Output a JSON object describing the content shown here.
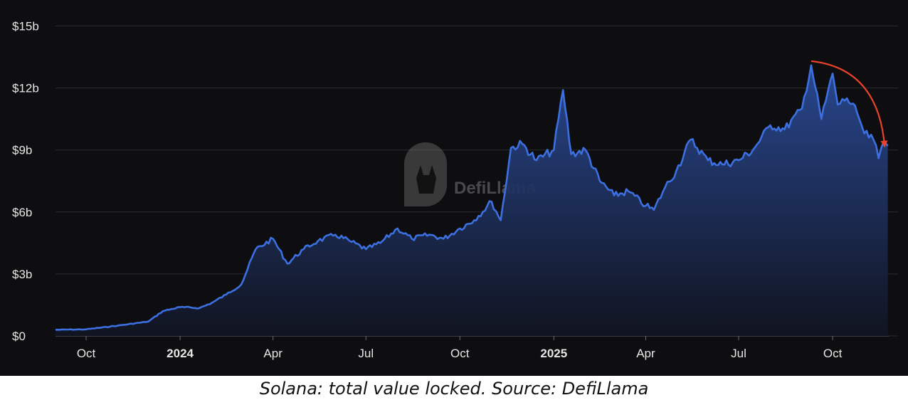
{
  "caption": "Solana: total value locked. Source: DefiLlama",
  "watermark": {
    "text": "DefiLlama",
    "icon": "llama-logo-icon"
  },
  "colors": {
    "background": "#0e0e10",
    "line": "#3c6fe0",
    "fill_top": "#2a4a96",
    "fill_bottom": "#111522",
    "arrow": "#e8412c",
    "text": "#e6e6e6"
  },
  "chart_data": {
    "type": "area",
    "title": "",
    "xlabel": "",
    "ylabel": "",
    "y_unit": "billion USD",
    "ylim": [
      0,
      15.5
    ],
    "yticks": [
      {
        "value": 0,
        "label": "$0"
      },
      {
        "value": 3,
        "label": "$3b"
      },
      {
        "value": 6,
        "label": "$6b"
      },
      {
        "value": 9,
        "label": "$9b"
      },
      {
        "value": 12,
        "label": "$12b"
      },
      {
        "value": 15,
        "label": "$15b"
      }
    ],
    "xlim": [
      "2023-09-01",
      "2025-11-25"
    ],
    "xticks": [
      {
        "date": "2023-10-01",
        "label": "Oct",
        "bold": false
      },
      {
        "date": "2024-01-01",
        "label": "2024",
        "bold": true
      },
      {
        "date": "2024-04-01",
        "label": "Apr",
        "bold": false
      },
      {
        "date": "2024-07-01",
        "label": "Jul",
        "bold": false
      },
      {
        "date": "2024-10-01",
        "label": "Oct",
        "bold": false
      },
      {
        "date": "2025-01-01",
        "label": "2025",
        "bold": true
      },
      {
        "date": "2025-04-01",
        "label": "Apr",
        "bold": false
      },
      {
        "date": "2025-07-01",
        "label": "Jul",
        "bold": false
      },
      {
        "date": "2025-10-01",
        "label": "Oct",
        "bold": false
      }
    ],
    "grid": true,
    "series": [
      {
        "x": [
          "2023-09-01",
          "2023-10-01",
          "2023-11-01",
          "2023-12-01",
          "2023-12-15",
          "2024-01-01",
          "2024-01-20",
          "2024-02-01",
          "2024-02-15",
          "2024-03-01",
          "2024-03-15",
          "2024-04-01",
          "2024-04-15",
          "2024-05-01",
          "2024-05-15",
          "2024-06-01",
          "2024-06-15",
          "2024-07-01",
          "2024-07-15",
          "2024-08-01",
          "2024-08-15",
          "2024-09-01",
          "2024-09-15",
          "2024-10-01",
          "2024-10-15",
          "2024-11-01",
          "2024-11-10",
          "2024-11-20",
          "2024-12-01",
          "2024-12-15",
          "2025-01-01",
          "2025-01-10",
          "2025-01-18",
          "2025-02-01",
          "2025-02-15",
          "2025-03-01",
          "2025-03-15",
          "2025-04-01",
          "2025-04-09",
          "2025-04-20",
          "2025-05-01",
          "2025-05-15",
          "2025-06-01",
          "2025-06-15",
          "2025-07-01",
          "2025-07-15",
          "2025-08-01",
          "2025-08-15",
          "2025-09-01",
          "2025-09-10",
          "2025-09-20",
          "2025-10-01",
          "2025-10-06",
          "2025-10-15",
          "2025-10-25",
          "2025-11-01",
          "2025-11-10",
          "2025-11-15",
          "2025-11-20",
          "2025-11-24"
        ],
        "y": [
          0.3,
          0.32,
          0.5,
          0.7,
          1.2,
          1.4,
          1.35,
          1.6,
          2.0,
          2.5,
          4.2,
          4.7,
          3.5,
          4.2,
          4.6,
          4.9,
          4.6,
          4.2,
          4.5,
          5.2,
          4.7,
          4.9,
          4.7,
          5.2,
          5.6,
          6.5,
          5.6,
          9.1,
          9.3,
          8.5,
          9.0,
          11.9,
          8.8,
          9.0,
          7.5,
          6.8,
          7.0,
          6.3,
          6.1,
          7.2,
          8.0,
          9.5,
          8.5,
          8.3,
          8.5,
          9.0,
          10.2,
          10.0,
          11.0,
          13.1,
          10.5,
          12.7,
          11.2,
          11.5,
          10.8,
          9.8,
          9.5,
          8.6,
          9.4,
          9.2
        ]
      }
    ],
    "annotations": [
      {
        "type": "arrow",
        "description": "downtrend arrow",
        "from_date": "2025-09-10",
        "from_value": 13.3,
        "to_date": "2025-11-25",
        "to_value": 8.9,
        "color": "#e8412c"
      }
    ]
  }
}
